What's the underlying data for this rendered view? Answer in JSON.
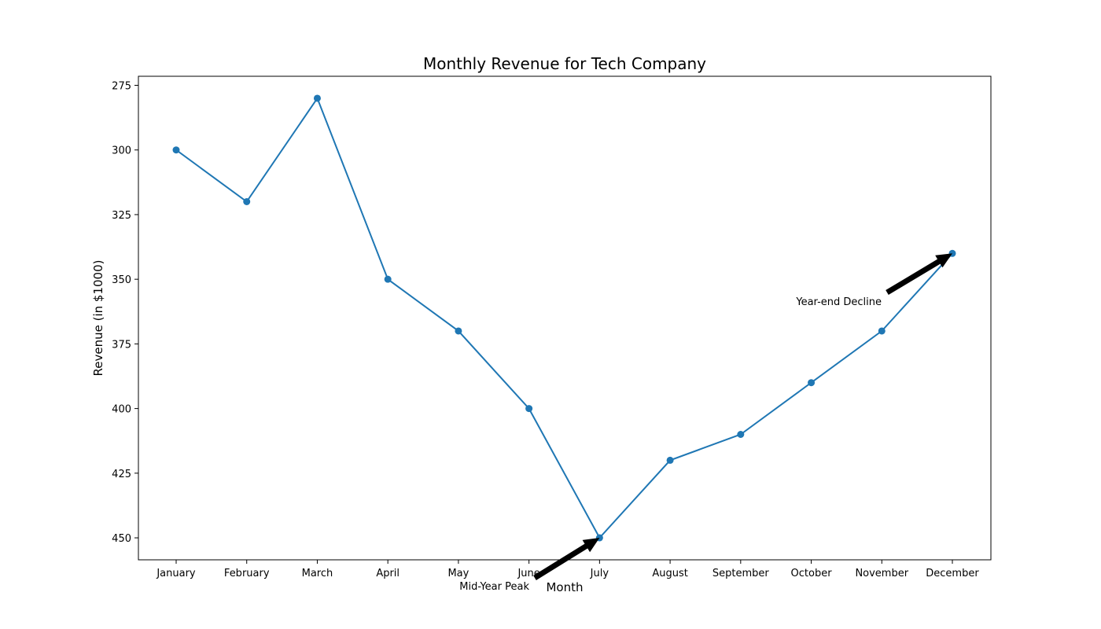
{
  "chart_data": {
    "type": "line",
    "title": "Monthly Revenue for Tech Company",
    "xlabel": "Month",
    "ylabel": "Revenue (in $1000)",
    "categories": [
      "January",
      "February",
      "March",
      "April",
      "May",
      "June",
      "July",
      "August",
      "September",
      "October",
      "November",
      "December"
    ],
    "values": [
      300,
      320,
      280,
      350,
      370,
      400,
      450,
      420,
      410,
      390,
      370,
      340
    ],
    "ylim": [
      458.5,
      271.5
    ],
    "y_inverted": true,
    "yticks": [
      275,
      300,
      325,
      350,
      375,
      400,
      425,
      450
    ],
    "grid": false,
    "legend": "none",
    "line_color": "#1f77b4",
    "annotations": [
      {
        "text": "Mid-Year Peak",
        "target_category": "July",
        "target_value": 450
      },
      {
        "text": "Year-end Decline",
        "target_category": "December",
        "target_value": 340
      }
    ]
  }
}
